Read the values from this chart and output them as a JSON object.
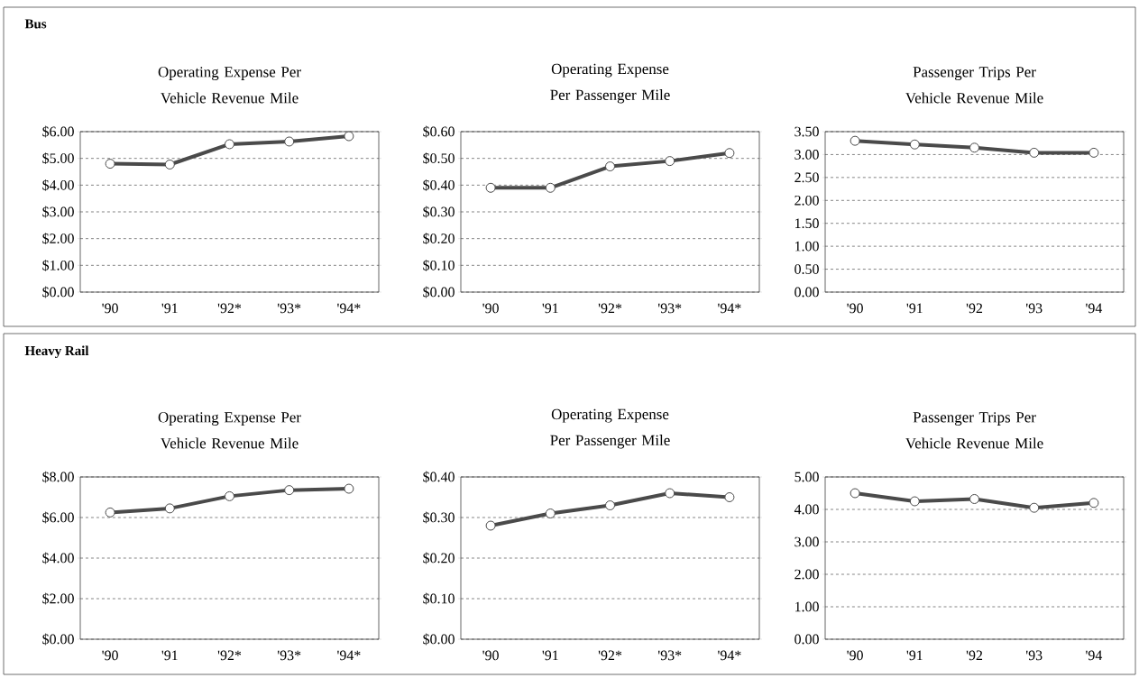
{
  "chart_data": [
    {
      "type": "line",
      "title": "Operating Expense Per Vehicle Revenue Mile",
      "annotations": [
        "Bus"
      ],
      "categories": [
        "'90",
        "'91",
        "'92*",
        "'93*",
        "'94*"
      ],
      "values": [
        4.8,
        4.77,
        5.53,
        5.63,
        5.83
      ],
      "color": "#4a4a4a",
      "marker": "circle",
      "grid": "y",
      "ylim": [
        0,
        6
      ],
      "yticks": [
        {
          "value": 0,
          "label": "$0.00"
        },
        {
          "value": 1,
          "label": "$1.00"
        },
        {
          "value": 2,
          "label": "$2.00"
        },
        {
          "value": 3,
          "label": "$3.00"
        },
        {
          "value": 4,
          "label": "$4.00"
        },
        {
          "value": 5,
          "label": "$5.00"
        },
        {
          "value": 6,
          "label": "$6.00"
        }
      ]
    },
    {
      "type": "line",
      "title": "Operating Expense Per Passenger Mile",
      "categories": [
        "'90",
        "'91",
        "'92*",
        "'93*",
        "'94*"
      ],
      "values": [
        0.39,
        0.39,
        0.47,
        0.49,
        0.52
      ],
      "color": "#4a4a4a",
      "marker": "circle",
      "grid": "y",
      "ylim": [
        0,
        0.6
      ],
      "yticks": [
        {
          "value": 0,
          "label": "$0.00"
        },
        {
          "value": 0.1,
          "label": "$0.10"
        },
        {
          "value": 0.2,
          "label": "$0.20"
        },
        {
          "value": 0.3,
          "label": "$0.30"
        },
        {
          "value": 0.4,
          "label": "$0.40"
        },
        {
          "value": 0.5,
          "label": "$0.50"
        },
        {
          "value": 0.6,
          "label": "$0.60"
        }
      ]
    },
    {
      "type": "line",
      "title": "Passenger Trips Per Vehicle Revenue Mile",
      "categories": [
        "'90",
        "'91",
        "'92",
        "'93",
        "'94"
      ],
      "values": [
        3.3,
        3.22,
        3.15,
        3.04,
        3.04
      ],
      "color": "#4a4a4a",
      "marker": "circle",
      "grid": "y",
      "ylim": [
        0,
        3.5
      ],
      "yticks": [
        {
          "value": 0,
          "label": "0.00"
        },
        {
          "value": 0.5,
          "label": "0.50"
        },
        {
          "value": 1,
          "label": "1.00"
        },
        {
          "value": 1.5,
          "label": "1.50"
        },
        {
          "value": 2,
          "label": "2.00"
        },
        {
          "value": 2.5,
          "label": "2.50"
        },
        {
          "value": 3,
          "label": "3.00"
        },
        {
          "value": 3.5,
          "label": "3.50"
        }
      ]
    },
    {
      "type": "line",
      "title": "Operating Expense Per Vehicle Revenue Mile",
      "annotations": [
        "Heavy Rail"
      ],
      "categories": [
        "'90",
        "'91",
        "'92*",
        "'93*",
        "'94*"
      ],
      "values": [
        6.25,
        6.45,
        7.05,
        7.35,
        7.42
      ],
      "color": "#4a4a4a",
      "marker": "circle",
      "grid": "y",
      "ylim": [
        0,
        8
      ],
      "yticks": [
        {
          "value": 0,
          "label": "$0.00"
        },
        {
          "value": 2,
          "label": "$2.00"
        },
        {
          "value": 4,
          "label": "$4.00"
        },
        {
          "value": 6,
          "label": "$6.00"
        },
        {
          "value": 8,
          "label": "$8.00"
        }
      ]
    },
    {
      "type": "line",
      "title": "Operating Expense Per Passenger Mile",
      "categories": [
        "'90",
        "'91",
        "'92*",
        "'93*",
        "'94*"
      ],
      "values": [
        0.28,
        0.31,
        0.33,
        0.36,
        0.35
      ],
      "color": "#4a4a4a",
      "marker": "circle",
      "grid": "y",
      "ylim": [
        0,
        0.4
      ],
      "yticks": [
        {
          "value": 0,
          "label": "$0.00"
        },
        {
          "value": 0.1,
          "label": "$0.10"
        },
        {
          "value": 0.2,
          "label": "$0.20"
        },
        {
          "value": 0.3,
          "label": "$0.30"
        },
        {
          "value": 0.4,
          "label": "$0.40"
        }
      ]
    },
    {
      "type": "line",
      "title": "Passenger Trips Per Vehicle Revenue Mile",
      "categories": [
        "'90",
        "'91",
        "'92",
        "'93",
        "'94"
      ],
      "values": [
        4.5,
        4.25,
        4.32,
        4.05,
        4.2
      ],
      "color": "#4a4a4a",
      "marker": "circle",
      "grid": "y",
      "ylim": [
        0,
        5
      ],
      "yticks": [
        {
          "value": 0,
          "label": "0.00"
        },
        {
          "value": 1,
          "label": "1.00"
        },
        {
          "value": 2,
          "label": "2.00"
        },
        {
          "value": 3,
          "label": "3.00"
        },
        {
          "value": 4,
          "label": "4.00"
        },
        {
          "value": 5,
          "label": "5.00"
        }
      ]
    }
  ]
}
